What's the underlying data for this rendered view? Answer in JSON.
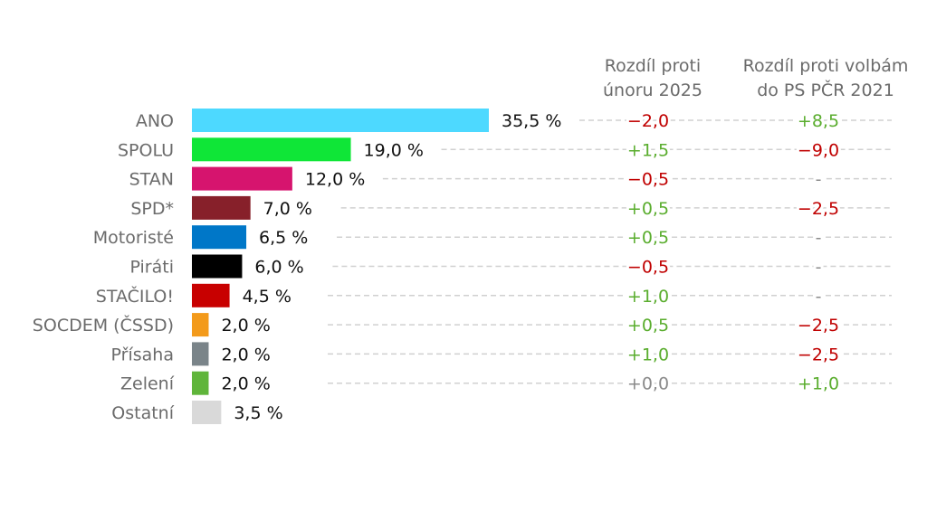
{
  "chart_data": {
    "type": "bar",
    "orientation": "horizontal",
    "categories": [
      "ANO",
      "SPOLU",
      "STAN",
      "SPD*",
      "Motoristé",
      "Piráti",
      "STAČILO!",
      "SOCDEM (ČSSD)",
      "Přísaha",
      "Zelení",
      "Ostatní"
    ],
    "values": [
      35.5,
      19.0,
      12.0,
      7.0,
      6.5,
      6.0,
      4.5,
      2.0,
      2.0,
      2.0,
      3.5
    ],
    "value_labels": [
      "35,5 %",
      "19,0 %",
      "12,0 %",
      "7,0 %",
      "6,5 %",
      "6,0 %",
      "4,5 %",
      "2,0 %",
      "2,0 %",
      "2,0 %",
      "3,5 %"
    ],
    "bar_colors": [
      "#4dd9ff",
      "#0fe637",
      "#d6146e",
      "#87202a",
      "#0077c8",
      "#000000",
      "#c80000",
      "#f39a1a",
      "#7a8489",
      "#5fb53a",
      "#d9d9d9"
    ],
    "columns": [
      {
        "header": [
          "Rozdíl proti",
          "únoru 2025"
        ],
        "values": [
          -2.0,
          1.5,
          -0.5,
          0.5,
          0.5,
          -0.5,
          1.0,
          0.5,
          1.0,
          0.0,
          null
        ],
        "labels": [
          "−2,0",
          "+1,5",
          "−0,5",
          "+0,5",
          "+0,5",
          "−0,5",
          "+1,0",
          "+0,5",
          "+1,0",
          "+0,0",
          null
        ]
      },
      {
        "header": [
          "Rozdíl proti volbám",
          "do PS PČR 2021"
        ],
        "values": [
          8.5,
          -9.0,
          null,
          -2.5,
          null,
          null,
          null,
          -2.5,
          -2.5,
          1.0,
          null
        ],
        "labels": [
          "+8,5",
          "−9,0",
          "-",
          "−2,5",
          "-",
          "-",
          "-",
          "−2,5",
          "−2,5",
          "+1,0",
          null
        ]
      }
    ],
    "colors": {
      "positive": "#5aad2e",
      "negative": "#c00000",
      "neutral": "#8a8a8a",
      "grid": "#d0d0d0"
    },
    "title": "",
    "xlabel": "",
    "ylabel": "",
    "xlim": [
      0,
      35.5
    ],
    "grid": true
  }
}
